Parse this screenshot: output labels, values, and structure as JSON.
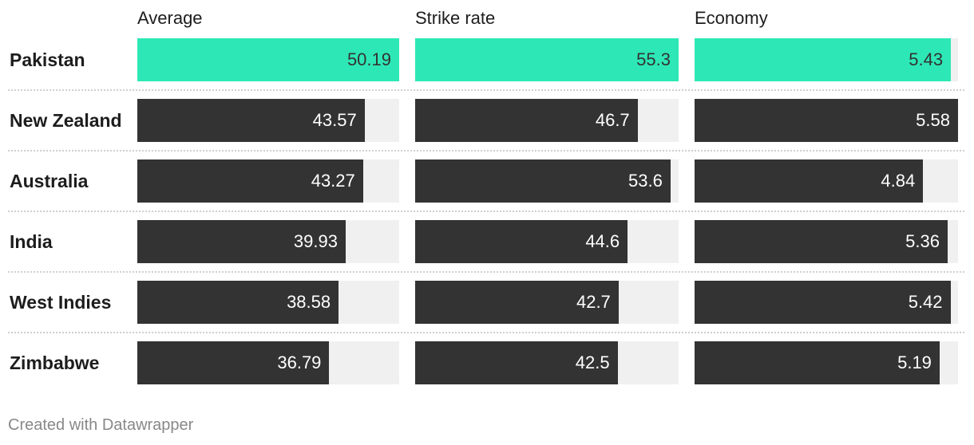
{
  "chart_data": {
    "type": "bar",
    "columns": [
      {
        "key": "average",
        "label": "Average",
        "max": 50.19
      },
      {
        "key": "strike_rate",
        "label": "Strike rate",
        "max": 55.3
      },
      {
        "key": "economy",
        "label": "Economy",
        "max": 5.58
      }
    ],
    "rows": [
      {
        "team": "Pakistan",
        "highlight": true,
        "values": {
          "average": "50.19",
          "strike_rate": "55.3",
          "economy": "5.43"
        }
      },
      {
        "team": "New Zealand",
        "highlight": false,
        "values": {
          "average": "43.57",
          "strike_rate": "46.7",
          "economy": "5.58"
        }
      },
      {
        "team": "Australia",
        "highlight": false,
        "values": {
          "average": "43.27",
          "strike_rate": "53.6",
          "economy": "4.84"
        }
      },
      {
        "team": "India",
        "highlight": false,
        "values": {
          "average": "39.93",
          "strike_rate": "44.6",
          "economy": "5.36"
        }
      },
      {
        "team": "West Indies",
        "highlight": false,
        "values": {
          "average": "38.58",
          "strike_rate": "42.7",
          "economy": "5.42"
        }
      },
      {
        "team": "Zimbabwe",
        "highlight": false,
        "values": {
          "average": "36.79",
          "strike_rate": "42.5",
          "economy": "5.19"
        }
      }
    ]
  },
  "colors": {
    "highlight": "#2de8b6",
    "bar": "#333333",
    "track": "#f0f0f0"
  },
  "footer": {
    "credit": "Created with Datawrapper"
  }
}
